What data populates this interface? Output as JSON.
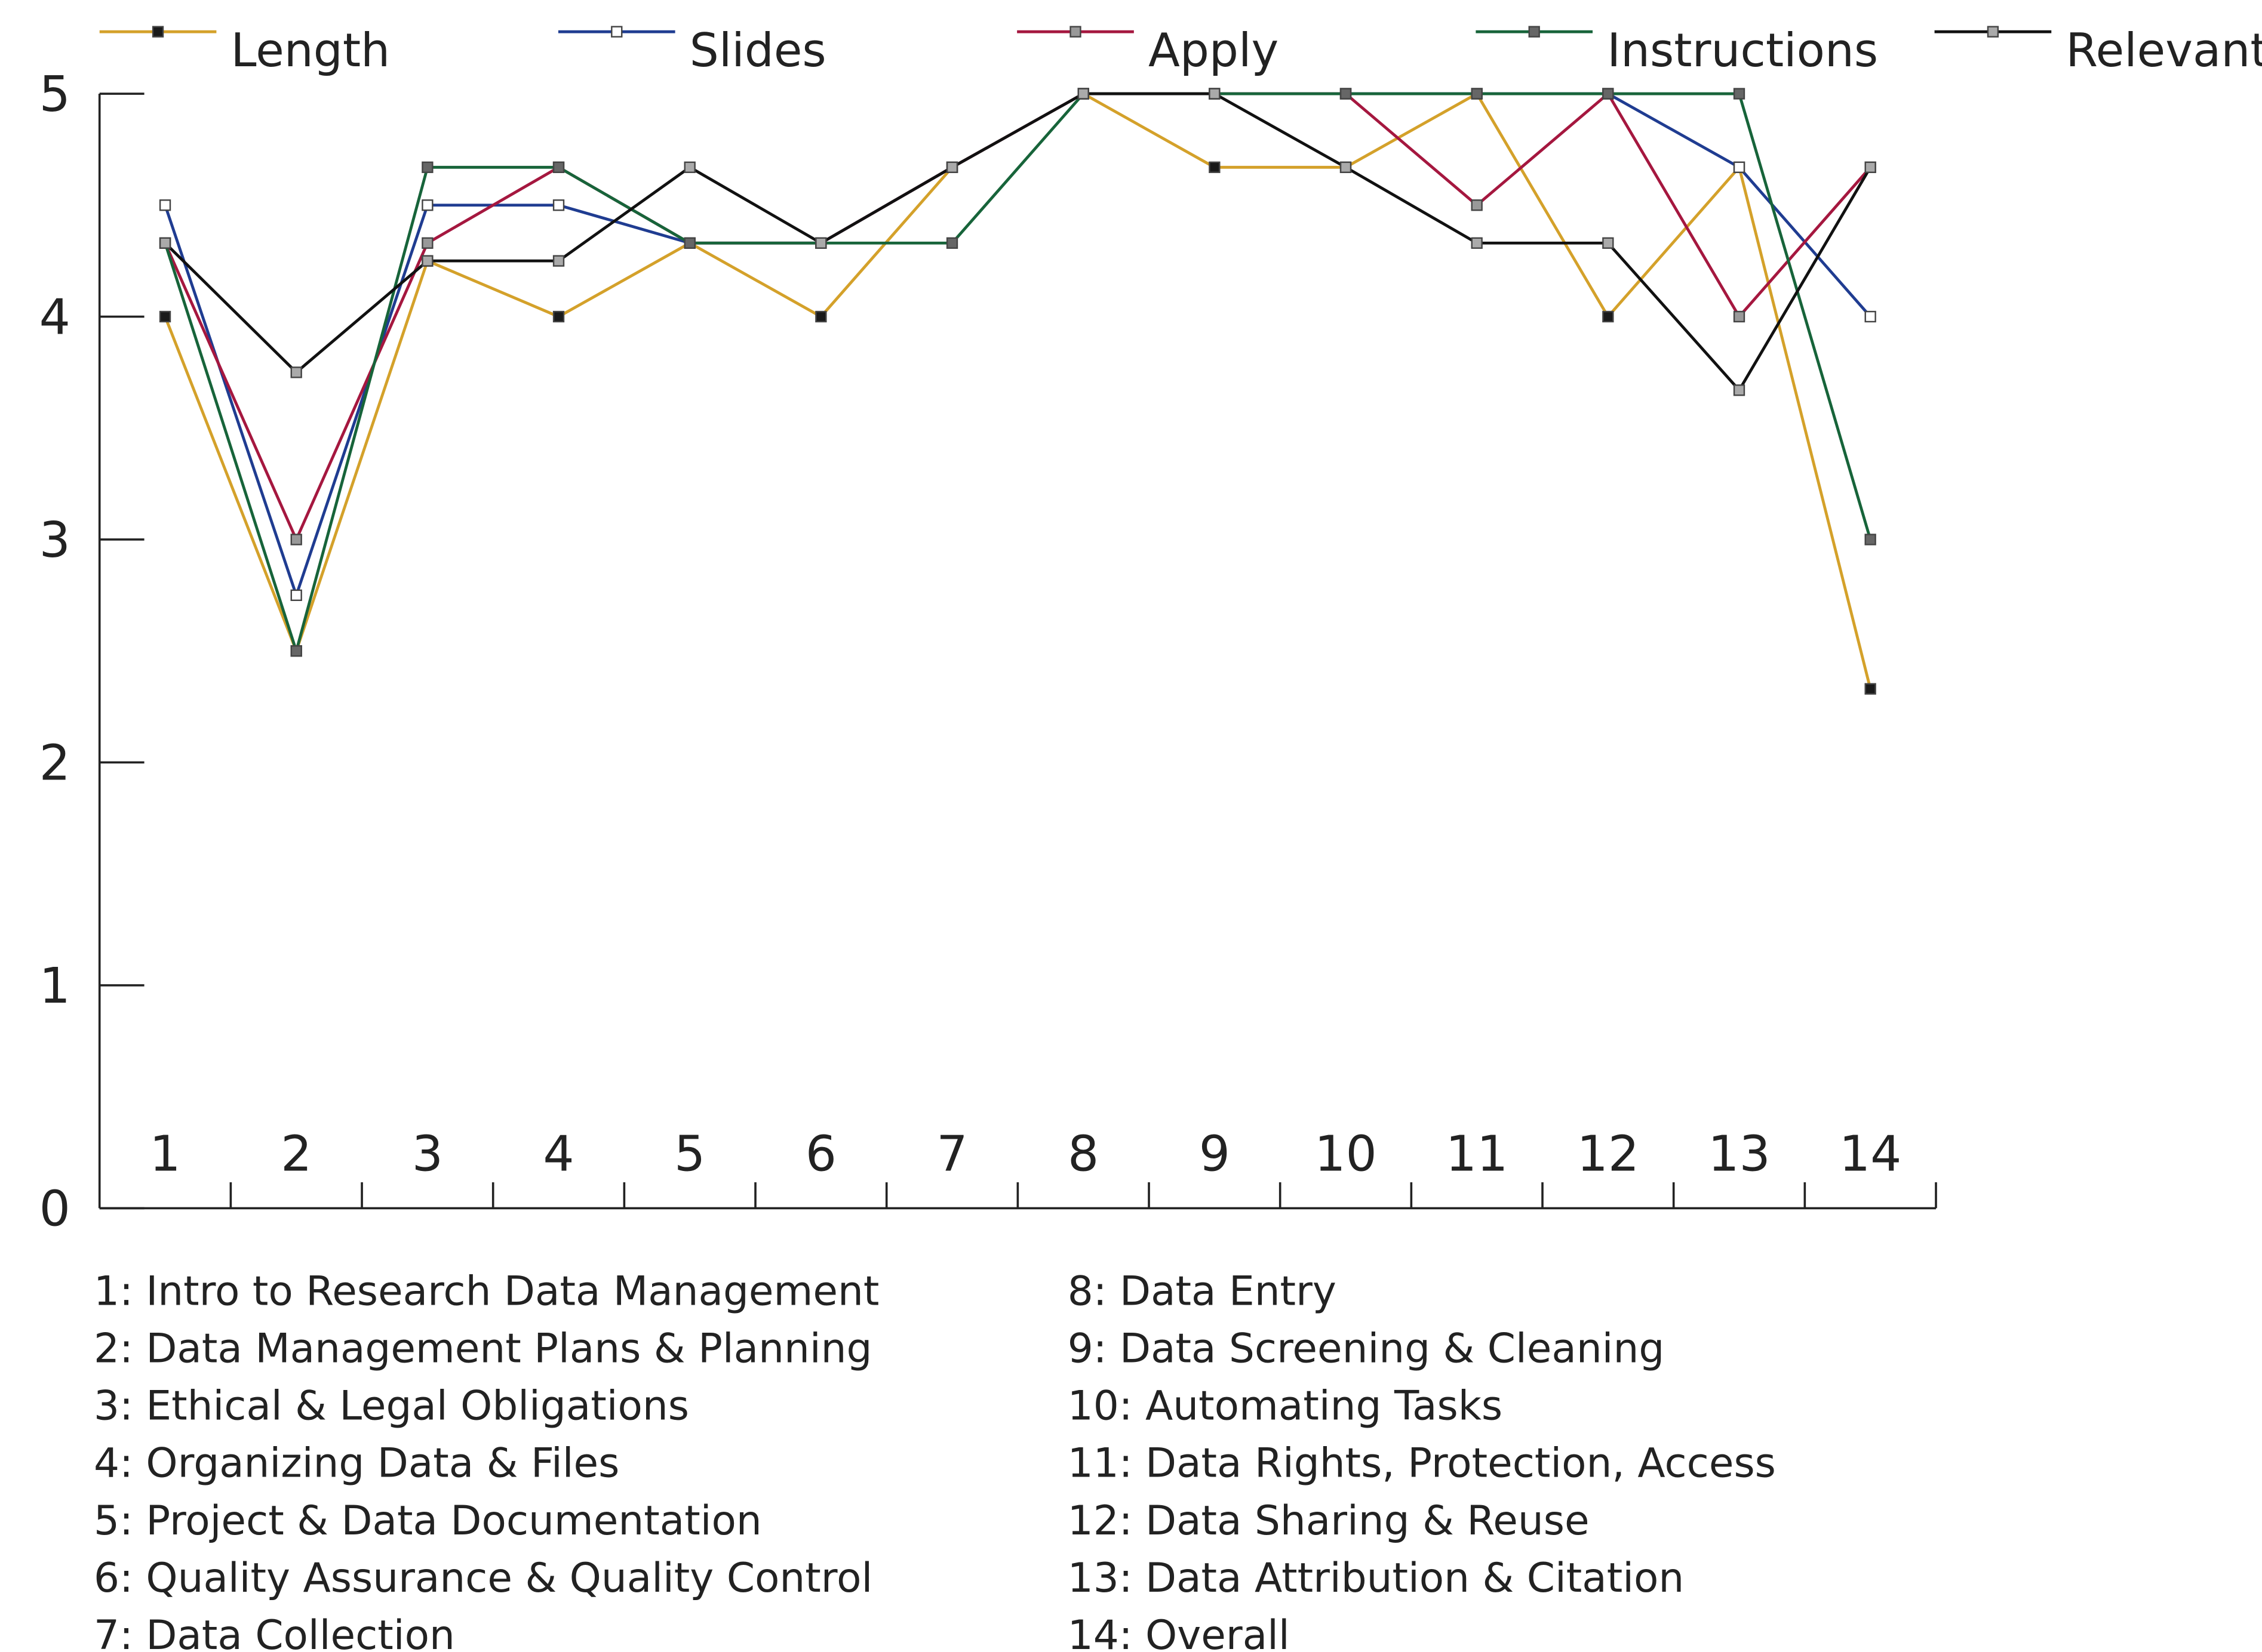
{
  "chart_data": {
    "type": "line",
    "categories": [
      "1",
      "2",
      "3",
      "4",
      "5",
      "6",
      "7",
      "8",
      "9",
      "10",
      "11",
      "12",
      "13",
      "14"
    ],
    "ylim": [
      0,
      5
    ],
    "yticks": [
      0,
      1,
      2,
      3,
      4,
      5
    ],
    "series": [
      {
        "name": "Length",
        "color": "#d4a12a",
        "marker": "#1a1a1a",
        "values": [
          4,
          2.5,
          4.25,
          4,
          4.33,
          4,
          4.67,
          5,
          4.67,
          4.67,
          5,
          4,
          4.67,
          2.33
        ]
      },
      {
        "name": "Slides",
        "color": "#1f3c91",
        "marker": "#ffffff",
        "values": [
          4.5,
          2.75,
          4.5,
          4.5,
          4.33,
          4.33,
          4.67,
          5,
          5,
          5,
          5,
          5,
          4.67,
          4
        ]
      },
      {
        "name": "Apply",
        "color": "#a5173f",
        "marker": "#999999",
        "values": [
          4.33,
          3,
          4.33,
          4.67,
          4.33,
          4.33,
          4.67,
          5,
          5,
          5,
          4.5,
          5,
          4,
          4.67
        ]
      },
      {
        "name": "Instructions",
        "color": "#17643a",
        "marker": "#666666",
        "values": [
          4.33,
          2.5,
          4.67,
          4.67,
          4.33,
          4.33,
          4.33,
          5,
          5,
          5,
          5,
          5,
          5,
          3
        ]
      },
      {
        "name": "Relevant",
        "color": "#111111",
        "marker": "#aaaaaa",
        "values": [
          4.33,
          3.75,
          4.25,
          4.25,
          4.67,
          4.33,
          4.67,
          5,
          5,
          4.67,
          4.33,
          4.33,
          3.67,
          4.67
        ]
      }
    ],
    "notes": [
      "1: Intro to Research Data Management",
      "2: Data Management Plans & Planning",
      "3: Ethical & Legal Obligations",
      "4: Organizing Data & Files",
      "5: Project & Data Documentation",
      "6: Quality Assurance & Quality Control",
      "7: Data Collection",
      "8: Data Entry",
      "9: Data Screening & Cleaning",
      "10: Automating Tasks",
      "11: Data Rights, Protection, Access",
      "12: Data Sharing & Reuse",
      "13: Data Attribution & Citation",
      "14: Overall"
    ]
  }
}
